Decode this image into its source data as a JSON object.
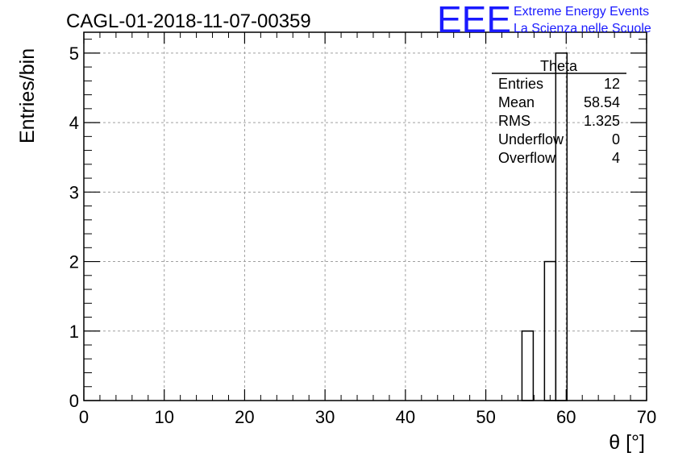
{
  "title": "CAGL-01-2018-11-07-00359",
  "logo": {
    "mark": "EEE",
    "line1": "Extreme Energy Events",
    "line2": "La Scienza nelle Scuole",
    "color": "#1a1aff"
  },
  "stats": {
    "name": "Theta",
    "rows": [
      {
        "label": "Entries",
        "value": "12"
      },
      {
        "label": "Mean",
        "value": "58.54"
      },
      {
        "label": "RMS",
        "value": "1.325"
      },
      {
        "label": "Underflow",
        "value": "0"
      },
      {
        "label": "Overflow",
        "value": "4"
      }
    ]
  },
  "chart_data": {
    "type": "bar",
    "histogram": true,
    "xlabel": "θ [°]",
    "ylabel": "Entries/bin",
    "xlim": [
      0,
      70
    ],
    "ylim": [
      0,
      5.3
    ],
    "xticks": [
      0,
      10,
      20,
      30,
      40,
      50,
      60,
      70
    ],
    "yticks": [
      0,
      1,
      2,
      3,
      4,
      5
    ],
    "grid": true,
    "bins": [
      {
        "x0": 54.5,
        "x1": 55.9,
        "value": 1
      },
      {
        "x0": 57.3,
        "x1": 58.7,
        "value": 2
      },
      {
        "x0": 58.7,
        "x1": 60.1,
        "value": 5
      }
    ],
    "line_color": "#000000",
    "grid_color": "#a0a0a0"
  }
}
